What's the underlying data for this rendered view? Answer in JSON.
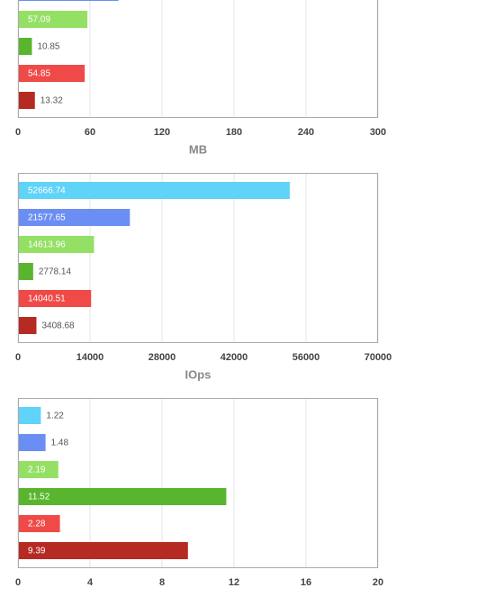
{
  "chart_data": [
    {
      "type": "bar",
      "values": [
        83,
        57.09,
        10.85,
        54.85,
        13.32
      ],
      "colors": [
        "#6b8ef5",
        "#94e065",
        "#5ab52e",
        "#ef4a47",
        "#b52a22"
      ],
      "xlim": [
        0,
        300
      ],
      "xticks": [
        0,
        60,
        120,
        180,
        240,
        300
      ],
      "xlabel": "MB",
      "grid": true
    },
    {
      "type": "bar",
      "values": [
        52666.74,
        21577.65,
        14613.96,
        2778.14,
        14040.51,
        3408.68
      ],
      "colors": [
        "#5fd3f8",
        "#6b8ef5",
        "#94e065",
        "#5ab52e",
        "#ef4a47",
        "#b52a22"
      ],
      "xlim": [
        0,
        70000
      ],
      "xticks": [
        0,
        14000,
        28000,
        42000,
        56000,
        70000
      ],
      "xlabel": "IOps",
      "grid": true
    },
    {
      "type": "bar",
      "values": [
        1.22,
        1.48,
        2.19,
        11.52,
        2.28,
        9.39
      ],
      "colors": [
        "#5fd3f8",
        "#6b8ef5",
        "#94e065",
        "#5ab52e",
        "#ef4a47",
        "#b52a22"
      ],
      "xlim": [
        0,
        20
      ],
      "xticks": [
        0,
        4,
        8,
        12,
        16,
        20
      ],
      "grid": true
    }
  ]
}
